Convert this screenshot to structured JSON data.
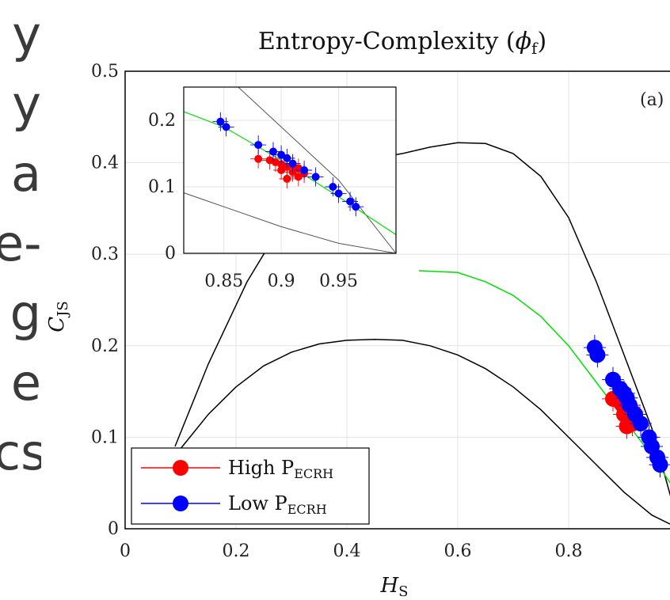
{
  "side_text": [
    "y",
    "y",
    "a",
    "e-",
    "g",
    "e",
    "cs"
  ],
  "chart_data": {
    "type": "scatter",
    "title": "Entropy-Complexity (ϕf)",
    "panel_label": "(a)",
    "xlabel": "HS",
    "ylabel": "CJS",
    "xlim": [
      0,
      1
    ],
    "ylim": [
      0,
      0.5
    ],
    "xticks": [
      "0",
      "0.2",
      "0.4",
      "0.6",
      "0.8"
    ],
    "yticks": [
      "0",
      "0.1",
      "0.2",
      "0.3",
      "0.4",
      "0.5"
    ],
    "grid": true,
    "legend_position": "bottom-left",
    "colors": {
      "high": "#ff0000",
      "low": "#0000ff",
      "fit": "#00e000",
      "bounds": "#000000"
    },
    "legend": [
      {
        "label": "High P",
        "sub": "ECRH",
        "color": "#ff0000"
      },
      {
        "label": "Low P",
        "sub": "ECRH",
        "color": "#0000ff"
      }
    ],
    "upper_bound": [
      [
        0.09,
        0.09
      ],
      [
        0.15,
        0.18
      ],
      [
        0.22,
        0.27
      ],
      [
        0.28,
        0.33
      ],
      [
        0.33,
        0.37
      ],
      [
        0.38,
        0.395
      ],
      [
        0.45,
        0.405
      ],
      [
        0.5,
        0.41
      ],
      [
        0.55,
        0.417
      ],
      [
        0.6,
        0.422
      ],
      [
        0.65,
        0.421
      ],
      [
        0.7,
        0.41
      ],
      [
        0.75,
        0.385
      ],
      [
        0.8,
        0.34
      ],
      [
        0.85,
        0.27
      ],
      [
        0.9,
        0.19
      ],
      [
        0.95,
        0.11
      ],
      [
        1.0,
        0.0
      ]
    ],
    "lower_bound": [
      [
        0.09,
        0.08
      ],
      [
        0.15,
        0.125
      ],
      [
        0.2,
        0.155
      ],
      [
        0.25,
        0.178
      ],
      [
        0.3,
        0.193
      ],
      [
        0.35,
        0.202
      ],
      [
        0.4,
        0.206
      ],
      [
        0.45,
        0.207
      ],
      [
        0.5,
        0.206
      ],
      [
        0.55,
        0.2
      ],
      [
        0.6,
        0.19
      ],
      [
        0.65,
        0.175
      ],
      [
        0.7,
        0.155
      ],
      [
        0.75,
        0.13
      ],
      [
        0.8,
        0.1
      ],
      [
        0.85,
        0.07
      ],
      [
        0.9,
        0.04
      ],
      [
        0.95,
        0.015
      ],
      [
        1.0,
        0.0
      ]
    ],
    "fit_curve": [
      [
        0.53,
        0.282
      ],
      [
        0.6,
        0.28
      ],
      [
        0.65,
        0.27
      ],
      [
        0.7,
        0.255
      ],
      [
        0.75,
        0.232
      ],
      [
        0.8,
        0.2
      ],
      [
        0.85,
        0.16
      ],
      [
        0.9,
        0.12
      ],
      [
        0.95,
        0.08
      ],
      [
        1.0,
        0.035
      ]
    ],
    "series": [
      {
        "name": "High P_ECRH",
        "color": "#ff0000",
        "points": [
          [
            0.88,
            0.142
          ],
          [
            0.89,
            0.14
          ],
          [
            0.895,
            0.137
          ],
          [
            0.9,
            0.134
          ],
          [
            0.905,
            0.13
          ],
          [
            0.9,
            0.125
          ],
          [
            0.91,
            0.122
          ],
          [
            0.91,
            0.133
          ],
          [
            0.915,
            0.128
          ],
          [
            0.92,
            0.12
          ],
          [
            0.905,
            0.112
          ],
          [
            0.915,
            0.115
          ]
        ]
      },
      {
        "name": "Low P_ECRH",
        "color": "#0000ff",
        "points": [
          [
            0.847,
            0.198
          ],
          [
            0.852,
            0.19
          ],
          [
            0.88,
            0.163
          ],
          [
            0.893,
            0.153
          ],
          [
            0.9,
            0.148
          ],
          [
            0.905,
            0.143
          ],
          [
            0.91,
            0.135
          ],
          [
            0.92,
            0.125
          ],
          [
            0.93,
            0.115
          ],
          [
            0.945,
            0.1
          ],
          [
            0.95,
            0.09
          ],
          [
            0.96,
            0.078
          ],
          [
            0.965,
            0.07
          ]
        ]
      }
    ],
    "inset": {
      "xlim": [
        0.815,
        1.0
      ],
      "ylim": [
        0,
        0.25
      ],
      "xticks": [
        "0.85",
        "0.9",
        "0.95"
      ],
      "yticks": [
        "0",
        "0.1",
        "0.2"
      ]
    }
  }
}
